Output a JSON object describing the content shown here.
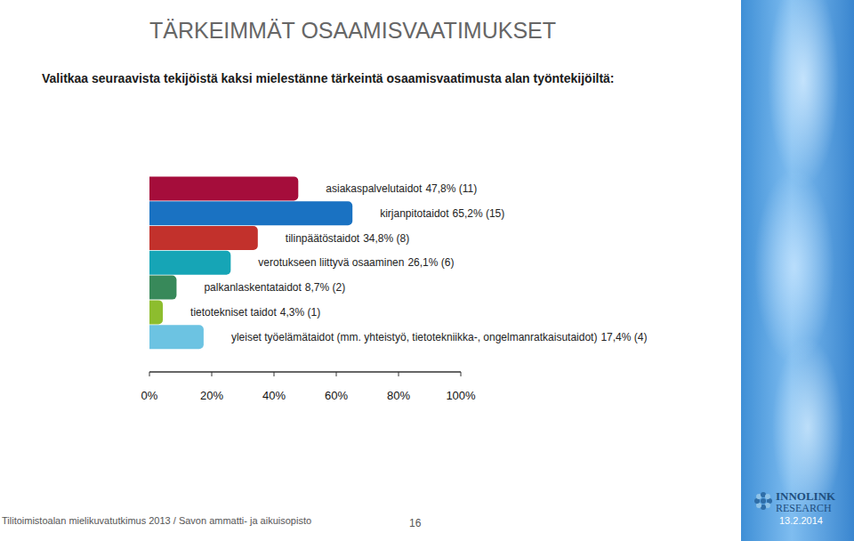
{
  "chart_data": {
    "type": "bar",
    "orientation": "horizontal",
    "title": "TÄRKEIMMÄT OSAAMISVAATIMUKSET",
    "subtitle": "Valitkaa seuraavista tekijöistä kaksi mielestänne tärkeintä osaamisvaatimusta alan työntekijöiltä:",
    "categories": [
      "asiakaspalvelutaidot",
      "kirjanpitotaidot",
      "tilinpäätöstaidot",
      "verotukseen liittyvä osaaminen",
      "palkanlaskentataidot",
      "tietotekniset taidot",
      "yleiset työelämätaidot (mm. yhteistyö, tietotekniikka-, ongelmanratkaisutaidot)"
    ],
    "values": [
      47.8,
      65.2,
      34.8,
      26.1,
      8.7,
      4.3,
      17.4
    ],
    "value_labels": [
      "47,8% (11)",
      "65,2% (15)",
      "34,8% (8)",
      "26,1% (6)",
      "8,7% (2)",
      "4,3% (1)",
      "17,4% (4)"
    ],
    "colors": [
      "#a50d3b",
      "#1a72c2",
      "#c2312c",
      "#16a5b6",
      "#38895a",
      "#8dbd2e",
      "#6cc3e2"
    ],
    "xlim": [
      0,
      100
    ],
    "xticks": [
      {
        "value": 0,
        "label": "0%"
      },
      {
        "value": 20,
        "label": "20%"
      },
      {
        "value": 40,
        "label": "40%"
      },
      {
        "value": 60,
        "label": "60%"
      },
      {
        "value": 80,
        "label": "80%"
      },
      {
        "value": 100,
        "label": "100%"
      }
    ],
    "data_labels": true,
    "tick_labels": "x"
  },
  "footer": {
    "source": "Tilitoimistoalan mielikuvatutkimus 2013 / Savon ammatti- ja aikuisopisto",
    "page": "16",
    "logo": [
      "INNOLINK",
      "RESEARCH"
    ],
    "date": "13.2.2014"
  }
}
